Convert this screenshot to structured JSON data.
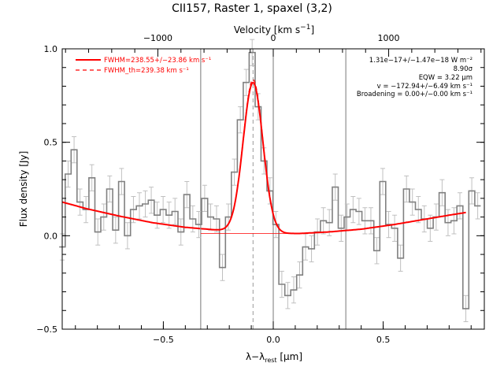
{
  "chart_data": {
    "type": "line",
    "title": "CII157, Raster 1, spaxel (3,2)",
    "xlabel": "λ−λ_rest [μm]",
    "ylabel": "Flux density [Jy]",
    "x2label": "Velocity [km s⁻¹]",
    "xlim": [
      -0.96,
      0.96
    ],
    "ylim": [
      -0.5,
      1.0
    ],
    "xticks": [
      -0.5,
      0.0,
      0.5
    ],
    "xticklabels": [
      "−0.5",
      "0.0",
      "0.5"
    ],
    "yticks": [
      -0.5,
      0.0,
      0.5,
      1.0
    ],
    "yticklabels": [
      "−0.5",
      "0.0",
      "0.5",
      "1.0"
    ],
    "x2ticks": [
      -1000,
      0,
      1000
    ],
    "x2ticklabels": [
      "−1000",
      "0",
      "1000"
    ],
    "x2_km_s_per_micron": 1905,
    "vertical_lines": [
      -0.33,
      0.0,
      0.33
    ],
    "line_center": -0.092,
    "legend": [
      {
        "label": "FWHM=238.55+/−23.86 km s⁻¹",
        "style": "solid",
        "color": "#ff0000"
      },
      {
        "label": "FWHM_th=239.38 km s⁻¹",
        "style": "dashed",
        "color": "#ff0000"
      }
    ],
    "annotations": [
      "1.31e−17+/−1.47e−18 W m⁻²",
      "8.90σ",
      "EQW = 3.22 μm",
      "v = −172.94+/−6.49 km s⁻¹",
      "Broadening = 0.00+/−0.00 km s⁻¹"
    ],
    "spectrum": {
      "name": "data",
      "color": "#808080",
      "x": [
        -0.96,
        -0.933,
        -0.906,
        -0.879,
        -0.852,
        -0.825,
        -0.798,
        -0.771,
        -0.744,
        -0.717,
        -0.69,
        -0.663,
        -0.636,
        -0.609,
        -0.582,
        -0.555,
        -0.528,
        -0.501,
        -0.474,
        -0.447,
        -0.42,
        -0.393,
        -0.366,
        -0.339,
        -0.312,
        -0.285,
        -0.258,
        -0.231,
        -0.204,
        -0.177,
        -0.15,
        -0.123,
        -0.096,
        -0.069,
        -0.042,
        -0.015,
        0.012,
        0.039,
        0.066,
        0.093,
        0.12,
        0.147,
        0.174,
        0.201,
        0.228,
        0.255,
        0.282,
        0.309,
        0.336,
        0.363,
        0.39,
        0.417,
        0.444,
        0.471,
        0.498,
        0.525,
        0.552,
        0.579,
        0.606,
        0.633,
        0.66,
        0.687,
        0.714,
        0.741,
        0.768,
        0.795,
        0.822,
        0.849,
        0.876,
        0.903,
        0.93
      ],
      "y": [
        -0.06,
        0.33,
        0.46,
        0.18,
        0.14,
        0.31,
        0.02,
        0.1,
        0.25,
        0.03,
        0.29,
        0.0,
        0.14,
        0.16,
        0.17,
        0.19,
        0.11,
        0.14,
        0.11,
        0.13,
        0.02,
        0.22,
        0.09,
        0.06,
        0.2,
        0.1,
        0.09,
        -0.17,
        0.1,
        0.34,
        0.62,
        0.82,
        0.98,
        0.69,
        0.4,
        0.24,
        0.06,
        -0.26,
        -0.32,
        -0.29,
        -0.21,
        -0.06,
        -0.07,
        0.02,
        0.08,
        0.07,
        0.26,
        0.04,
        0.1,
        0.14,
        0.13,
        0.08,
        0.08,
        -0.08,
        0.29,
        0.06,
        0.04,
        -0.12,
        0.25,
        0.18,
        0.14,
        0.09,
        0.04,
        0.1,
        0.23,
        0.07,
        0.08,
        0.16,
        -0.39,
        0.24,
        0.16
      ],
      "err": 0.07
    },
    "fit": {
      "name": "fit",
      "color": "#ff0000",
      "baseline": [
        [
          -0.96,
          0.18
        ],
        [
          -0.85,
          0.145
        ],
        [
          -0.7,
          0.105
        ],
        [
          -0.55,
          0.07
        ],
        [
          -0.4,
          0.045
        ],
        [
          -0.25,
          0.03
        ],
        [
          -0.1,
          0.02
        ],
        [
          0.05,
          0.012
        ],
        [
          0.12,
          0.012
        ],
        [
          0.25,
          0.02
        ],
        [
          0.4,
          0.035
        ],
        [
          0.55,
          0.06
        ],
        [
          0.7,
          0.09
        ],
        [
          0.8,
          0.11
        ],
        [
          0.88,
          0.125
        ]
      ],
      "peak": 0.8,
      "sigma": 0.045,
      "fit_range": [
        -0.33,
        0.88
      ]
    }
  }
}
